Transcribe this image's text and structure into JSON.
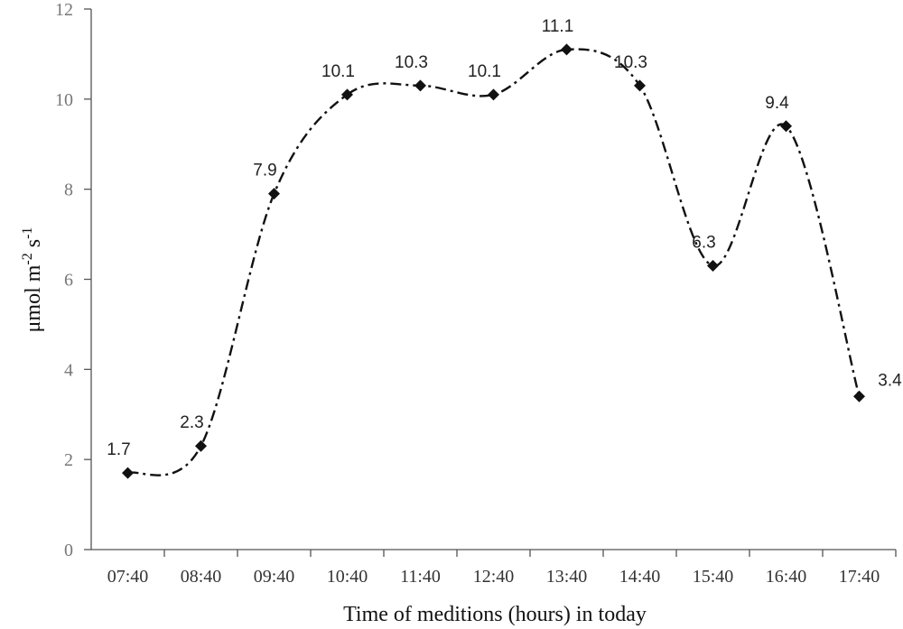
{
  "chart_data": {
    "type": "line",
    "categories": [
      "07:40",
      "08:40",
      "09:40",
      "10:40",
      "11:40",
      "12:40",
      "13:40",
      "14:40",
      "15:40",
      "16:40",
      "17:40"
    ],
    "series": [
      {
        "values": [
          1.7,
          2.3,
          7.9,
          10.1,
          10.3,
          10.1,
          11.1,
          10.3,
          6.3,
          9.4,
          3.4
        ],
        "labels": [
          "1.7",
          "2.3",
          "7.9",
          "10.1",
          "10.3",
          "10.1",
          "11.1",
          "10.3",
          "6.3",
          "9.4",
          "3.4"
        ],
        "color": "#111111",
        "line_style": "dash-dot",
        "smooth": true,
        "marker": "diamond"
      }
    ],
    "xlabel": "Time of meditions (hours) in today",
    "ylabel_parts": {
      "base": "μmol m",
      "sup1": "-2",
      "mid": " s",
      "sup2": "-1"
    },
    "ylim": [
      0,
      12
    ],
    "yticks": [
      "0",
      "2",
      "4",
      "6",
      "8",
      "10",
      "12"
    ],
    "grid": false,
    "legend": "none"
  }
}
